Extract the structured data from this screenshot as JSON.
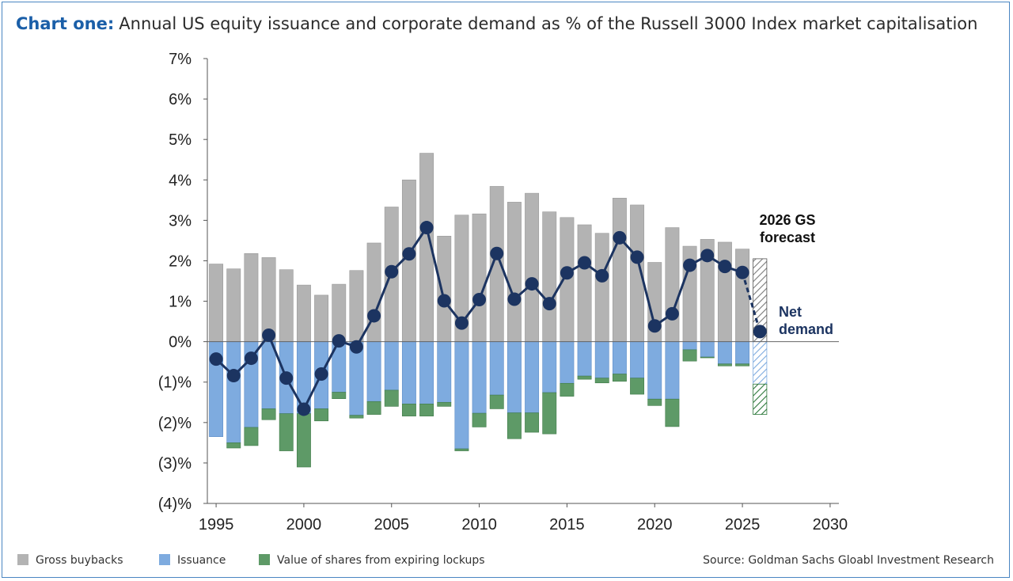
{
  "title": {
    "lead": "Chart one:",
    "text": "Annual US equity issuance and corporate demand as % of the Russell 3000 Index market capitalisation"
  },
  "source": "Source: Goldman Sachs Gloabl Investment Research",
  "legend": [
    {
      "label": "Gross buybacks",
      "color": "#b3b3b3"
    },
    {
      "label": "Issuance",
      "color": "#7eabdf"
    },
    {
      "label": "Value of shares from expiring lockups",
      "color": "#5e9a67"
    }
  ],
  "annotations": {
    "forecast": [
      "2026 GS",
      "forecast"
    ],
    "net_demand": [
      "Net",
      "demand"
    ]
  },
  "colors": {
    "buybacks": "#b3b3b3",
    "issuance": "#7eabdf",
    "lockups": "#5e9a67",
    "net_demand": "#1c3461",
    "frame": "#4a86c2",
    "title_lead": "#1b5fa8"
  },
  "chart_data": {
    "type": "bar",
    "ylim": [
      -4,
      7
    ],
    "xlim": [
      1994.5,
      2030.5
    ],
    "y_ticks": [
      {
        "value": 7,
        "label": "7%"
      },
      {
        "value": 6,
        "label": "6%"
      },
      {
        "value": 5,
        "label": "5%"
      },
      {
        "value": 4,
        "label": "4%"
      },
      {
        "value": 3,
        "label": "3%"
      },
      {
        "value": 2,
        "label": "2%"
      },
      {
        "value": 1,
        "label": "1%"
      },
      {
        "value": 0,
        "label": "0%"
      },
      {
        "value": -1,
        "label": "(1)%"
      },
      {
        "value": -2,
        "label": "(2)%"
      },
      {
        "value": -3,
        "label": "(3)%"
      },
      {
        "value": -4,
        "label": "(4)%"
      }
    ],
    "x_ticks": [
      1995,
      2000,
      2005,
      2010,
      2015,
      2020,
      2025,
      2030
    ],
    "years": [
      1995,
      1996,
      1997,
      1998,
      1999,
      2000,
      2001,
      2002,
      2003,
      2004,
      2005,
      2006,
      2007,
      2008,
      2009,
      2010,
      2011,
      2012,
      2013,
      2014,
      2015,
      2016,
      2017,
      2018,
      2019,
      2020,
      2021,
      2022,
      2023,
      2024,
      2025
    ],
    "series": [
      {
        "name": "Gross buybacks",
        "values": [
          1.92,
          1.8,
          2.18,
          2.08,
          1.78,
          1.4,
          1.15,
          1.42,
          1.76,
          2.44,
          3.33,
          4.0,
          4.66,
          2.61,
          3.13,
          3.16,
          3.84,
          3.45,
          3.67,
          3.21,
          3.07,
          2.89,
          2.68,
          3.55,
          3.38,
          1.96,
          2.82,
          2.36,
          2.53,
          2.46,
          2.29
        ]
      },
      {
        "name": "Issuance",
        "values": [
          -2.35,
          -2.5,
          -2.12,
          -1.66,
          -1.78,
          -1.78,
          -1.66,
          -1.25,
          -1.82,
          -1.48,
          -1.2,
          -1.54,
          -1.54,
          -1.5,
          -2.65,
          -1.77,
          -1.32,
          -1.76,
          -1.76,
          -1.26,
          -1.03,
          -0.85,
          -0.9,
          -0.8,
          -0.9,
          -1.42,
          -1.42,
          -0.2,
          -0.38,
          -0.55,
          -0.55
        ]
      },
      {
        "name": "Value of shares from expiring lockups",
        "values": [
          0,
          -0.13,
          -0.45,
          -0.27,
          -0.92,
          -1.32,
          -0.3,
          -0.16,
          -0.07,
          -0.32,
          -0.4,
          -0.3,
          -0.3,
          -0.1,
          -0.05,
          -0.34,
          -0.34,
          -0.64,
          -0.48,
          -1.02,
          -0.32,
          -0.08,
          -0.12,
          -0.18,
          -0.4,
          -0.16,
          -0.68,
          -0.28,
          -0.02,
          -0.05,
          -0.05
        ]
      },
      {
        "name": "Net demand",
        "values": [
          -0.43,
          -0.84,
          -0.41,
          0.16,
          -0.9,
          -1.67,
          -0.8,
          0.02,
          -0.13,
          0.64,
          1.73,
          2.17,
          2.82,
          1.01,
          0.46,
          1.04,
          2.18,
          1.05,
          1.43,
          0.94,
          1.7,
          1.95,
          1.63,
          2.57,
          2.09,
          0.39,
          0.69,
          1.89,
          2.13,
          1.86,
          1.71
        ]
      }
    ],
    "forecast": {
      "year": 2026,
      "buybacks": 2.05,
      "issuance": -1.05,
      "lockups": -0.75,
      "net_demand": 0.25
    }
  }
}
